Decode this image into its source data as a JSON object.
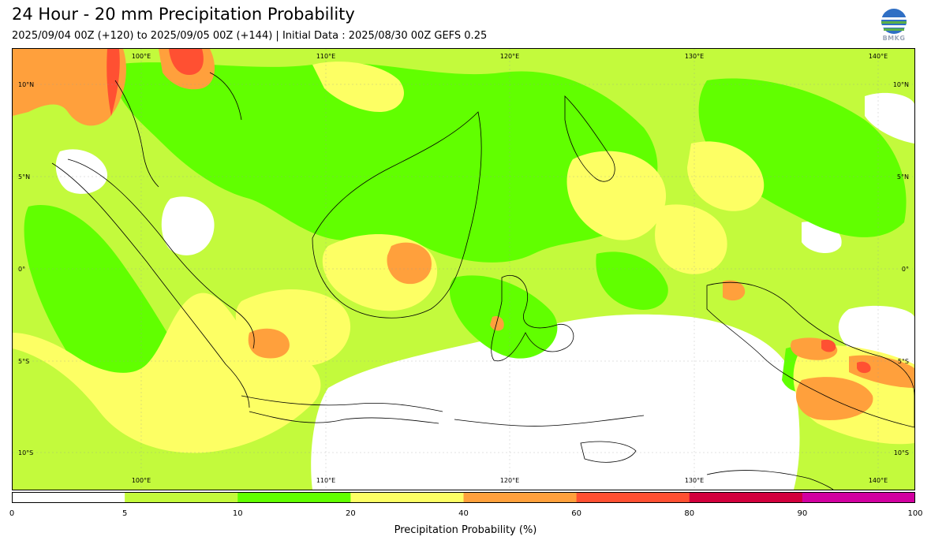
{
  "header": {
    "title": "24 Hour - 20 mm Precipitation Probability",
    "subtitle": "2025/09/04 00Z (+120) to 2025/09/05 00Z (+144) | Initial Data : 2025/08/30 00Z GEFS 0.25"
  },
  "logo": {
    "text": "BMKG"
  },
  "map": {
    "lon_labels_top": [
      "100°E",
      "110°E",
      "120°E",
      "130°E",
      "140°E"
    ],
    "lon_labels_bottom": [
      "100°E",
      "110°E",
      "120°E",
      "130°E",
      "140°E"
    ],
    "lat_labels_left": [
      "10°N",
      "5°N",
      "0°",
      "5°S",
      "10°S"
    ],
    "lat_labels_right": [
      "10°N",
      "5°N",
      "0°",
      "5°S",
      "10°S"
    ],
    "extent": {
      "lon": [
        93,
        142
      ],
      "lat": [
        -12,
        12
      ]
    }
  },
  "colorbar": {
    "ticks": [
      "0",
      "5",
      "10",
      "20",
      "40",
      "60",
      "80",
      "90",
      "100"
    ],
    "colors": [
      "#ffffff",
      "#c3fa3c",
      "#61ff00",
      "#fdff64",
      "#ffa03c",
      "#ff5032",
      "#d2003c",
      "#d200a0"
    ],
    "label": "Precipitation Probability (%)"
  }
}
